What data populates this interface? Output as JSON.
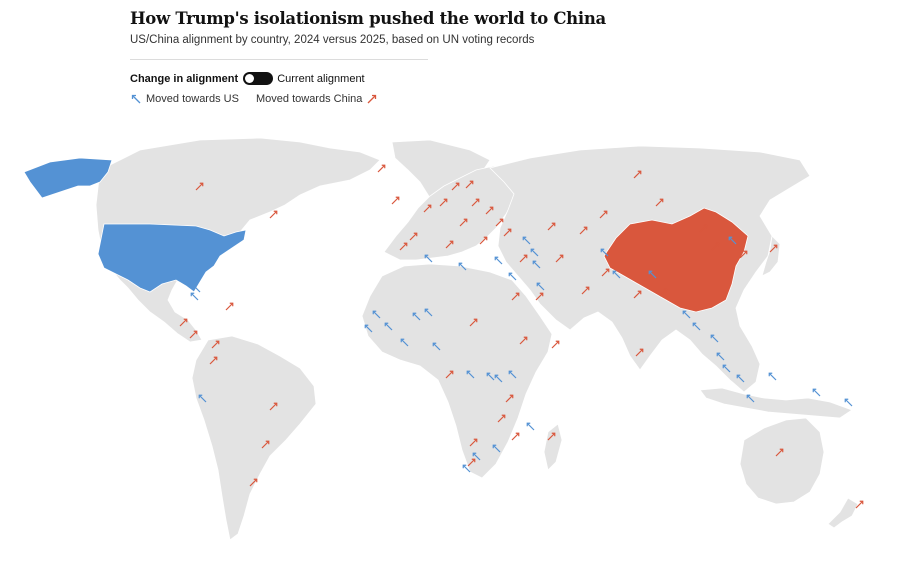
{
  "header": {
    "title": "How Trump's isolationism pushed the world to China",
    "subtitle": "US/China alignment by country, 2024 versus 2025, based on UN voting records"
  },
  "toggle": {
    "left_label": "Change in alignment",
    "right_label": "Current alignment",
    "state": "change"
  },
  "legend": {
    "us_label": "Moved towards US",
    "china_label": "Moved towards China"
  },
  "colors": {
    "us": "#5492d4",
    "china": "#d9573d",
    "land": "#e3e3e3",
    "background": "#ffffff"
  },
  "map": {
    "highlighted_countries": [
      {
        "name": "United States",
        "color_key": "us"
      },
      {
        "name": "China",
        "color_key": "china"
      }
    ],
    "arrows": {
      "towards_us": [
        "Mexico",
        "Bahamas",
        "Mauritania",
        "Senegal",
        "Guinea",
        "Sierra Leone",
        "Mali",
        "Niger",
        "Nigeria",
        "Ghana",
        "Cameroon",
        "Kenya",
        "Tanzania",
        "Uganda",
        "Somalia",
        "Ecuador",
        "Algeria",
        "Tunisia",
        "Turkey",
        "Azerbaijan",
        "Armenia",
        "Georgia",
        "Saudi Arabia",
        "Israel",
        "Jordan",
        "Afghanistan",
        "Myanmar",
        "Laos",
        "Thailand",
        "Vietnam",
        "Cambodia",
        "Malaysia",
        "Philippines",
        "Indonesia",
        "Papua New Guinea",
        "Fiji",
        "Zambia",
        "Mozambique",
        "Lesotho",
        "Japan"
      ],
      "towards_china": [
        "Canada",
        "Greenland",
        "Iceland",
        "United Kingdom",
        "Ireland",
        "France",
        "Spain",
        "Portugal",
        "Germany",
        "Netherlands",
        "Belgium",
        "Italy",
        "Poland",
        "Sweden",
        "Norway",
        "Finland",
        "Russia",
        "Kazakhstan",
        "Mongolia",
        "Iran",
        "Iraq",
        "Egypt",
        "Libya",
        "Sudan",
        "Ethiopia",
        "DR Congo",
        "Angola",
        "South Africa",
        "Namibia",
        "Botswana",
        "Madagascar",
        "Brazil",
        "Argentina",
        "Chile",
        "Peru",
        "Colombia",
        "Venezuela",
        "Cuba",
        "Guatemala",
        "Honduras",
        "Nicaragua",
        "Costa Rica",
        "Panama",
        "India",
        "Pakistan",
        "Nepal",
        "Bangladesh",
        "Sri Lanka",
        "South Korea",
        "Australia",
        "New Zealand"
      ]
    }
  }
}
